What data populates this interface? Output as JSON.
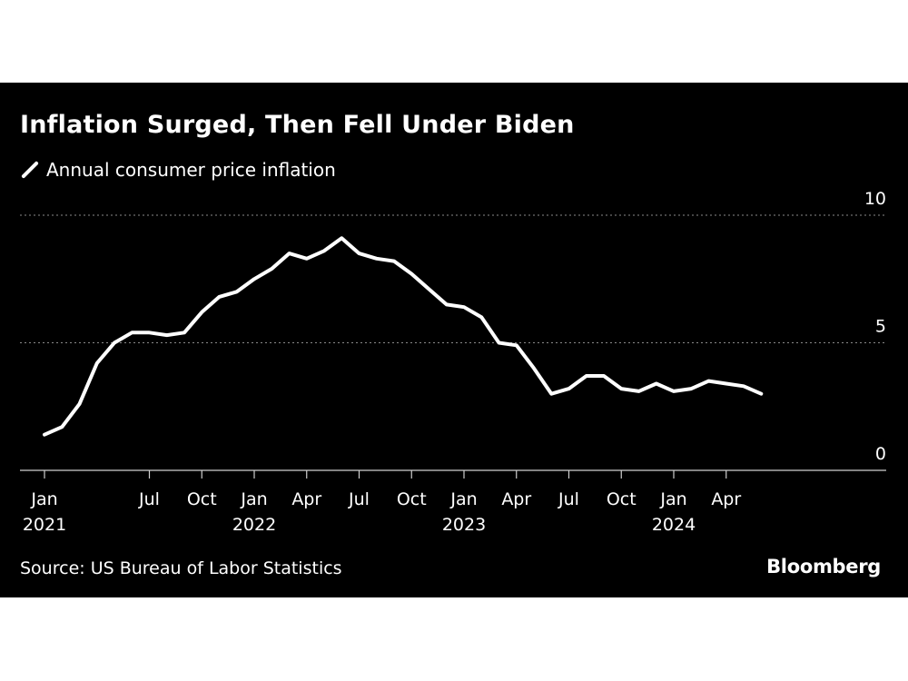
{
  "chart_data": {
    "type": "line",
    "title": "Inflation Surged, Then Fell Under Biden",
    "series": [
      {
        "name": "Annual consumer price inflation",
        "x": [
          "2021-01",
          "2021-02",
          "2021-03",
          "2021-04",
          "2021-05",
          "2021-06",
          "2021-07",
          "2021-08",
          "2021-09",
          "2021-10",
          "2021-11",
          "2021-12",
          "2022-01",
          "2022-02",
          "2022-03",
          "2022-04",
          "2022-05",
          "2022-06",
          "2022-07",
          "2022-08",
          "2022-09",
          "2022-10",
          "2022-11",
          "2022-12",
          "2023-01",
          "2023-02",
          "2023-03",
          "2023-04",
          "2023-05",
          "2023-06",
          "2023-07",
          "2023-08",
          "2023-09",
          "2023-10",
          "2023-11",
          "2023-12",
          "2024-01",
          "2024-02",
          "2024-03",
          "2024-04",
          "2024-05",
          "2024-06"
        ],
        "values": [
          1.4,
          1.7,
          2.6,
          4.2,
          5.0,
          5.4,
          5.4,
          5.3,
          5.4,
          6.2,
          6.8,
          7.0,
          7.5,
          7.9,
          8.5,
          8.3,
          8.6,
          9.1,
          8.5,
          8.3,
          8.2,
          7.7,
          7.1,
          6.5,
          6.4,
          6.0,
          5.0,
          4.9,
          4.0,
          3.0,
          3.2,
          3.7,
          3.7,
          3.2,
          3.1,
          3.4,
          3.1,
          3.2,
          3.5,
          3.4,
          3.3,
          3.0
        ],
        "color": "#ffffff"
      }
    ],
    "ylim": [
      0,
      10
    ],
    "yticks": [
      "0",
      "5",
      "10"
    ],
    "xticks": [
      {
        "date": "2021-01",
        "label": "Jan",
        "year": "2021"
      },
      {
        "date": "2021-07",
        "label": "Jul",
        "year": ""
      },
      {
        "date": "2021-10",
        "label": "Oct",
        "year": ""
      },
      {
        "date": "2022-01",
        "label": "Jan",
        "year": "2022"
      },
      {
        "date": "2022-04",
        "label": "Apr",
        "year": ""
      },
      {
        "date": "2022-07",
        "label": "Jul",
        "year": ""
      },
      {
        "date": "2022-10",
        "label": "Oct",
        "year": ""
      },
      {
        "date": "2023-01",
        "label": "Jan",
        "year": "2023"
      },
      {
        "date": "2023-04",
        "label": "Apr",
        "year": ""
      },
      {
        "date": "2023-07",
        "label": "Jul",
        "year": ""
      },
      {
        "date": "2023-10",
        "label": "Oct",
        "year": ""
      },
      {
        "date": "2024-01",
        "label": "Jan",
        "year": "2024"
      },
      {
        "date": "2024-04",
        "label": "Apr",
        "year": ""
      }
    ],
    "grid": "horizontal dotted",
    "legend_position": "top-left",
    "source": "Source: US Bureau of Labor Statistics",
    "brand": "Bloomberg",
    "background_color": "#000000"
  }
}
